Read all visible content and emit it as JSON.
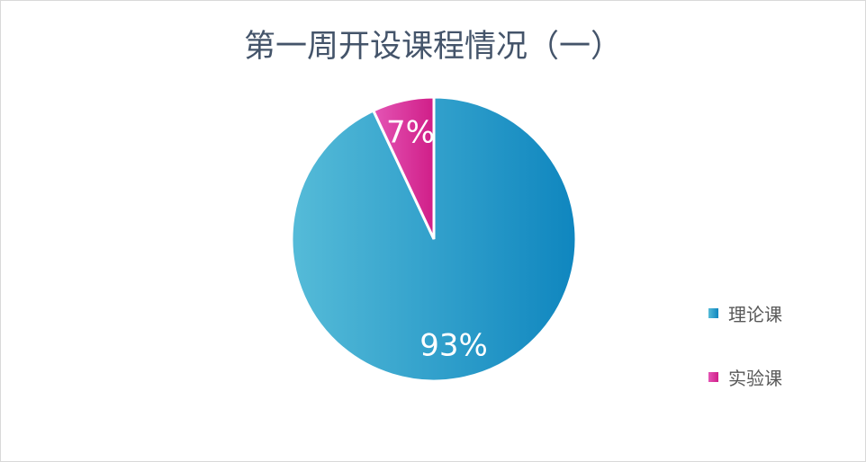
{
  "chart_data": {
    "type": "pie",
    "title": "第一周开设课程情况（一）",
    "categories": [
      "理论课",
      "实验课"
    ],
    "values": [
      93,
      7
    ],
    "data_labels": [
      "93%",
      "7%"
    ],
    "colors": [
      [
        "#55bbd8",
        "#0f86bf"
      ],
      [
        "#e455b5",
        "#d01e88"
      ]
    ],
    "legend": "right"
  }
}
